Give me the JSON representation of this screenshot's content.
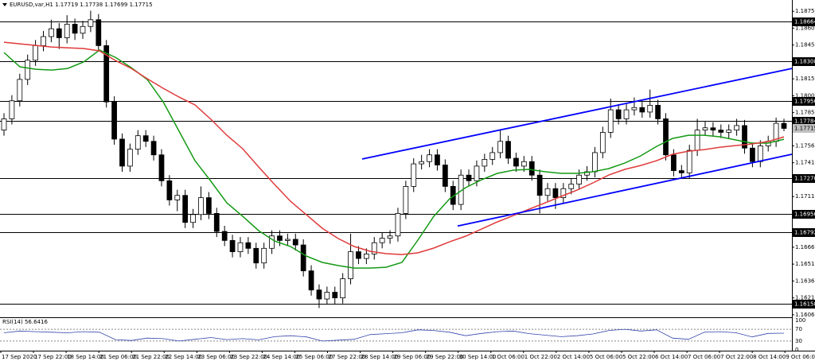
{
  "chart_data": {
    "type": "candlestick",
    "title": "EURUSD,var,H1  1.17719 1.17738 1.17699 1.17715",
    "ylim": [
      1.16045,
      1.18855
    ],
    "yticks": [
      1.18755,
      1.18605,
      1.18455,
      1.18155,
      1.18005,
      1.17855,
      {
        "value": 1.1756,
        "label": "1.17560"
      },
      {
        "value": 1.1741,
        "label": "1.17410"
      },
      {
        "value": 1.1711,
        "label": "1.17110"
      },
      {
        "value": 1.1666,
        "label": "1.16660"
      },
      {
        "value": 1.1651,
        "label": "1.16510"
      },
      {
        "value": 1.1636,
        "label": "1.16360"
      },
      {
        "value": 1.1621,
        "label": "1.16210"
      },
      {
        "value": 1.1606,
        "label": "1.16060"
      }
    ],
    "x_labels": [
      "17 Sep 2020",
      "17 Sep 22:00",
      "18 Sep 14:00",
      "21 Sep 06:00",
      "21 Sep 22:00",
      "22 Sep 14:00",
      "23 Sep 06:00",
      "23 Sep 22:00",
      "24 Sep 14:00",
      "25 Sep 06:00",
      "27 Sep 22:00",
      "28 Sep 14:00",
      "29 Sep 06:00",
      "29 Sep 22:00",
      "30 Sep 14:00",
      "1 Oct 06:00",
      "1 Oct 22:00",
      "2 Oct 14:00",
      "5 Oct 06:00",
      "5 Oct 22:00",
      "6 Oct 14:00",
      "7 Oct 06:00",
      "7 Oct 22:00",
      "8 Oct 14:00",
      "9 Oct 06:00"
    ],
    "levels": [
      1.18664,
      1.18308,
      1.17956,
      1.17784,
      {
        "value": 1.1727,
        "label": "1.17270"
      },
      1.16956,
      1.16792,
      1.16158
    ],
    "current_price": 1.17715,
    "open": [
      1.177,
      1.178,
      1.1796,
      1.1815,
      1.1832,
      1.1845,
      1.1853,
      1.186,
      1.1852,
      1.1864,
      1.1856,
      1.1862,
      1.1868,
      1.1845,
      1.1795,
      1.1762,
      1.1738,
      1.1753,
      1.1765,
      1.176,
      1.1748,
      1.1725,
      1.1708,
      1.1712,
      1.1688,
      1.1695,
      1.171,
      1.1696,
      1.168,
      1.1672,
      1.1662,
      1.167,
      1.1665,
      1.1652,
      1.1665,
      1.1676,
      1.1672,
      1.1673,
      1.1668,
      1.1645,
      1.1628,
      1.162,
      1.1626,
      1.1621,
      1.1638,
      1.1662,
      1.1656,
      1.166,
      1.167,
      1.1674,
      1.1676,
      1.1696,
      1.172,
      1.174,
      1.1742,
      1.1748,
      1.1739,
      1.172,
      1.1704,
      1.173,
      1.1725,
      1.1738,
      1.1744,
      1.175,
      1.176,
      1.1745,
      1.1738,
      1.1742,
      1.173,
      1.1712,
      1.1718,
      1.171,
      1.1718,
      1.1722,
      1.173,
      1.1733,
      1.175,
      1.1768,
      1.1788,
      1.178,
      1.1788,
      1.179,
      1.1786,
      1.1792,
      1.178,
      1.1748,
      1.1734,
      1.1732,
      1.1752,
      1.177,
      1.1772,
      1.177,
      1.1768,
      1.177,
      1.1774,
      1.1754,
      1.1742,
      1.1756,
      1.176,
      1.1776
    ],
    "high": [
      1.1785,
      1.1801,
      1.182,
      1.1837,
      1.185,
      1.1858,
      1.1868,
      1.1865,
      1.1872,
      1.1869,
      1.1867,
      1.1876,
      1.1873,
      1.185,
      1.18,
      1.1767,
      1.1758,
      1.177,
      1.177,
      1.1765,
      1.1753,
      1.173,
      1.1717,
      1.1717,
      1.17,
      1.172,
      1.1715,
      1.1701,
      1.1685,
      1.1677,
      1.1675,
      1.1675,
      1.167,
      1.167,
      1.1681,
      1.1681,
      1.1678,
      1.1678,
      1.1673,
      1.165,
      1.1633,
      1.1631,
      1.1631,
      1.1643,
      1.1678,
      1.1667,
      1.1665,
      1.1675,
      1.1679,
      1.1681,
      1.1701,
      1.1725,
      1.1745,
      1.1748,
      1.1753,
      1.1753,
      1.1744,
      1.1725,
      1.1735,
      1.1735,
      1.1743,
      1.1749,
      1.1755,
      1.177,
      1.1765,
      1.175,
      1.1747,
      1.1747,
      1.1735,
      1.1723,
      1.1723,
      1.1723,
      1.1727,
      1.1735,
      1.1738,
      1.1755,
      1.1773,
      1.1798,
      1.1793,
      1.1793,
      1.1799,
      1.1795,
      1.1806,
      1.1797,
      1.1785,
      1.1753,
      1.1739,
      1.1757,
      1.178,
      1.1778,
      1.1777,
      1.1775,
      1.1775,
      1.178,
      1.1779,
      1.1759,
      1.1761,
      1.1765,
      1.1781,
      1.178
    ],
    "low": [
      1.1765,
      1.1775,
      1.1791,
      1.181,
      1.1827,
      1.184,
      1.1848,
      1.1842,
      1.1847,
      1.185,
      1.1851,
      1.1857,
      1.184,
      1.179,
      1.1757,
      1.1733,
      1.1733,
      1.1748,
      1.1755,
      1.1743,
      1.172,
      1.1703,
      1.1698,
      1.1683,
      1.1683,
      1.169,
      1.1691,
      1.1675,
      1.1667,
      1.1657,
      1.1657,
      1.166,
      1.1647,
      1.1647,
      1.166,
      1.1667,
      1.1667,
      1.1663,
      1.164,
      1.1623,
      1.1612,
      1.1615,
      1.16158,
      1.1616,
      1.1633,
      1.1651,
      1.1651,
      1.1655,
      1.1665,
      1.1669,
      1.1671,
      1.1691,
      1.1715,
      1.1735,
      1.1737,
      1.1734,
      1.1715,
      1.1699,
      1.1699,
      1.172,
      1.172,
      1.1733,
      1.1739,
      1.1745,
      1.174,
      1.1733,
      1.1733,
      1.1725,
      1.1696,
      1.1707,
      1.17,
      1.1705,
      1.1713,
      1.1717,
      1.1725,
      1.1728,
      1.1745,
      1.1763,
      1.1775,
      1.1775,
      1.1783,
      1.1781,
      1.1781,
      1.1775,
      1.1743,
      1.1729,
      1.1727,
      1.1727,
      1.1747,
      1.1765,
      1.1765,
      1.1763,
      1.1763,
      1.1765,
      1.1749,
      1.1737,
      1.1737,
      1.1751,
      1.1755,
      1.1769
    ],
    "close": [
      1.178,
      1.1796,
      1.1815,
      1.1832,
      1.1845,
      1.1853,
      1.186,
      1.1852,
      1.1864,
      1.1856,
      1.1862,
      1.1868,
      1.1845,
      1.1795,
      1.1762,
      1.1738,
      1.1753,
      1.1765,
      1.176,
      1.1748,
      1.1725,
      1.1708,
      1.1712,
      1.1688,
      1.1695,
      1.171,
      1.1696,
      1.168,
      1.1672,
      1.1662,
      1.167,
      1.1665,
      1.1652,
      1.1665,
      1.1676,
      1.1672,
      1.1673,
      1.1668,
      1.1645,
      1.1628,
      1.162,
      1.1626,
      1.1621,
      1.1638,
      1.1662,
      1.1656,
      1.166,
      1.167,
      1.1674,
      1.1676,
      1.1696,
      1.172,
      1.174,
      1.1742,
      1.1748,
      1.1739,
      1.172,
      1.1704,
      1.173,
      1.1725,
      1.1738,
      1.1744,
      1.175,
      1.176,
      1.1745,
      1.1738,
      1.1742,
      1.173,
      1.1712,
      1.1718,
      1.171,
      1.1718,
      1.1722,
      1.173,
      1.1733,
      1.175,
      1.1768,
      1.1788,
      1.178,
      1.1788,
      1.179,
      1.1786,
      1.1792,
      1.178,
      1.1748,
      1.1734,
      1.1732,
      1.1752,
      1.177,
      1.1772,
      1.177,
      1.1768,
      1.177,
      1.1774,
      1.1754,
      1.1742,
      1.1756,
      1.176,
      1.1776,
      1.17715
    ],
    "moving_averages": [
      {
        "color": "#149a14",
        "values": [
          1.18389,
          1.18262,
          1.1824,
          1.18233,
          1.18247,
          1.18304,
          1.1841,
          1.18346,
          1.18254,
          1.18149,
          1.17951,
          1.1769,
          1.17428,
          1.17245,
          1.17054,
          1.16934,
          1.16807,
          1.16715,
          1.16666,
          1.16581,
          1.16525,
          1.16497,
          1.16475,
          1.16475,
          1.16482,
          1.16525,
          1.16723,
          1.16934,
          1.1709,
          1.17189,
          1.17259,
          1.17316,
          1.17344,
          1.17351,
          1.1733,
          1.17316,
          1.17316,
          1.1733,
          1.17358,
          1.17407,
          1.17471,
          1.17555,
          1.17626,
          1.17654,
          1.17654,
          1.1764,
          1.17612,
          1.17584,
          1.17584,
          1.17619
        ]
      },
      {
        "color": "#e03a3a",
        "values": [
          1.1848,
          1.18466,
          1.18452,
          1.18438,
          1.18431,
          1.18424,
          1.18403,
          1.18318,
          1.18247,
          1.18156,
          1.18071,
          1.17993,
          1.17923,
          1.17796,
          1.17654,
          1.17534,
          1.17372,
          1.17217,
          1.17068,
          1.16948,
          1.16828,
          1.16737,
          1.16666,
          1.16624,
          1.16603,
          1.16595,
          1.1661,
          1.16652,
          1.16708,
          1.16758,
          1.16821,
          1.16885,
          1.16941,
          1.16998,
          1.17054,
          1.17111,
          1.17167,
          1.17231,
          1.17301,
          1.17351,
          1.17386,
          1.17428,
          1.17485,
          1.17513,
          1.17527,
          1.17548,
          1.17563,
          1.17577,
          1.17598,
          1.1764
        ]
      }
    ],
    "trendlines": [
      {
        "color": "#0000ff",
        "from": 1.17443,
        "to": 1.18247
      },
      {
        "color": "#0000ff",
        "from": 1.16848,
        "to": 1.17485
      }
    ],
    "rsi": {
      "label": "RSI(14) 56.6416",
      "color": "#3344aa",
      "ylim": [
        0,
        100
      ],
      "yticks": [
        100,
        70,
        30,
        0
      ],
      "values": [
        58,
        64,
        62,
        60,
        58,
        62,
        60,
        35,
        32,
        40,
        38,
        30,
        36,
        42,
        35,
        38,
        34,
        45,
        48,
        44,
        30,
        33,
        36,
        52,
        55,
        58,
        68,
        66,
        60,
        48,
        56,
        62,
        64,
        55,
        50,
        45,
        48,
        54,
        66,
        70,
        64,
        68,
        40,
        36,
        60,
        62,
        58,
        44,
        56,
        56.6416
      ]
    }
  }
}
